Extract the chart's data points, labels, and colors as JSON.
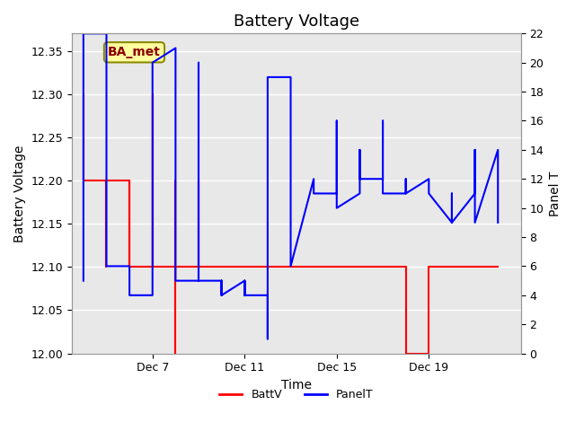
{
  "title": "Battery Voltage",
  "xlabel": "Time",
  "ylabel_left": "Battery Voltage",
  "ylabel_right": "Panel T",
  "annotation_text": "BA_met",
  "annotation_bg": "#FFFFA0",
  "annotation_border": "#8B8B00",
  "annotation_text_color": "#8B0000",
  "left_ylim": [
    12.0,
    12.37
  ],
  "right_ylim": [
    0,
    22
  ],
  "left_yticks": [
    12.0,
    12.05,
    12.1,
    12.15,
    12.2,
    12.25,
    12.3,
    12.35
  ],
  "right_yticks": [
    0,
    2,
    4,
    6,
    8,
    10,
    12,
    14,
    16,
    18,
    20,
    22
  ],
  "background_color": "#FFFFFF",
  "plot_bg_color": "#E8E8E8",
  "batt_color": "#FF0000",
  "panel_color": "#0000FF",
  "grid_color": "#FFFFFF",
  "legend_batt": "BattV",
  "legend_panel": "PanelT",
  "batt_linewidth": 1.5,
  "panel_linewidth": 1.5,
  "title_fontsize": 13,
  "axis_label_fontsize": 10,
  "tick_fontsize": 9,
  "legend_fontsize": 9,
  "batt_data_x": [
    3,
    3,
    4,
    4,
    4,
    5,
    5,
    5,
    6,
    6,
    6,
    7,
    7,
    7,
    7,
    7,
    8,
    8,
    8,
    9,
    9,
    9,
    9,
    10,
    10,
    10,
    11,
    11,
    11,
    11,
    12,
    12,
    17,
    17,
    17,
    18,
    18,
    19,
    19,
    19,
    20,
    20,
    20,
    21,
    21
  ],
  "batt_data_y": [
    12.3,
    12.2,
    12.2,
    12.1,
    12.2,
    12.1,
    12.2,
    12.1,
    12.1,
    12.3,
    12.1,
    12.0,
    12.2,
    12.2,
    12.1,
    12.1,
    12.1,
    12.2,
    12.1,
    12.1,
    12.1,
    12.1,
    12.1,
    12.1,
    12.1,
    12.1,
    12.1,
    12.1,
    12.1,
    12.1,
    12.1,
    12.1,
    12.1,
    12.1,
    12.0,
    12.1,
    12.1,
    12.1,
    12.1,
    12.1,
    12.1,
    12.1,
    12.1,
    12.1,
    12.1
  ],
  "panel_data_x": [
    3,
    3,
    3,
    4,
    4,
    4,
    5,
    5,
    5,
    6,
    6,
    6,
    6,
    7,
    7,
    7,
    7,
    8,
    8,
    8,
    8,
    8,
    9,
    9,
    9,
    9,
    9,
    10,
    10,
    10,
    10,
    10,
    11,
    11,
    11,
    11,
    11,
    11,
    11,
    12,
    12,
    12,
    12,
    13,
    13,
    13,
    14,
    14,
    14,
    14,
    15,
    15,
    15,
    15,
    16,
    16,
    16,
    16,
    17,
    17,
    17,
    17,
    18,
    18,
    18,
    18,
    19,
    19,
    19,
    19,
    20,
    20,
    20,
    20,
    21,
    21,
    21
  ],
  "panel_data_y": [
    5,
    7,
    22,
    22,
    20,
    6,
    6,
    5,
    4,
    4,
    5,
    20,
    20,
    21,
    20,
    7,
    5,
    5,
    20,
    19,
    8,
    5,
    5,
    5,
    4,
    5,
    4,
    5,
    4,
    4,
    5,
    4,
    4,
    3,
    2,
    1,
    2,
    17,
    19,
    19,
    13,
    12,
    6,
    12,
    12,
    11,
    11,
    16,
    16,
    10,
    11,
    14,
    12,
    12,
    12,
    16,
    12,
    11,
    11,
    12,
    11,
    11,
    12,
    11,
    11,
    11,
    9,
    11,
    9,
    9,
    11,
    12,
    14,
    9,
    14,
    12,
    9
  ]
}
